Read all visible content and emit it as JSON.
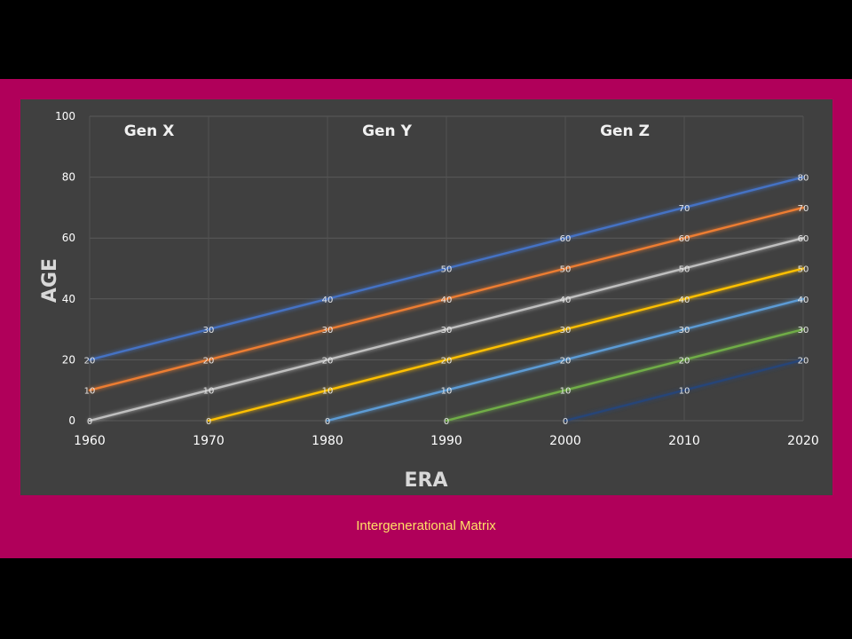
{
  "caption": "Intergenerational Matrix",
  "colors": {
    "background": "#000000",
    "frame": "#b0005a",
    "panel": "#404040",
    "caption": "#ffe066"
  },
  "chart_data": {
    "type": "line",
    "xlabel": "ERA",
    "ylabel": "AGE",
    "xlim": [
      1960,
      2020
    ],
    "ylim": [
      0,
      100
    ],
    "x_ticks": [
      "1960",
      "1970",
      "1980",
      "1990",
      "2000",
      "2010",
      "2020"
    ],
    "y_ticks": [
      "0",
      "20",
      "40",
      "60",
      "80",
      "100"
    ],
    "grid": "vertical and horizontal gridlines",
    "generation_labels": [
      "Gen X",
      "Gen Y",
      "Gen Z"
    ],
    "series": [
      {
        "color": "#4472c4",
        "points": [
          [
            1960,
            20
          ],
          [
            1970,
            30
          ],
          [
            1980,
            40
          ],
          [
            1990,
            50
          ],
          [
            2000,
            60
          ],
          [
            2010,
            70
          ],
          [
            2020,
            80
          ]
        ]
      },
      {
        "color": "#ed7d31",
        "points": [
          [
            1960,
            10
          ],
          [
            1970,
            20
          ],
          [
            1980,
            30
          ],
          [
            1990,
            40
          ],
          [
            2000,
            50
          ],
          [
            2010,
            60
          ],
          [
            2020,
            70
          ]
        ]
      },
      {
        "color": "#bfbfbf",
        "points": [
          [
            1960,
            0
          ],
          [
            1970,
            10
          ],
          [
            1980,
            20
          ],
          [
            1990,
            30
          ],
          [
            2000,
            40
          ],
          [
            2010,
            50
          ],
          [
            2020,
            60
          ]
        ]
      },
      {
        "color": "#ffc000",
        "points": [
          [
            1970,
            0
          ],
          [
            1980,
            10
          ],
          [
            1990,
            20
          ],
          [
            2000,
            30
          ],
          [
            2010,
            40
          ],
          [
            2020,
            50
          ]
        ]
      },
      {
        "color": "#5b9bd5",
        "points": [
          [
            1980,
            0
          ],
          [
            1990,
            10
          ],
          [
            2000,
            20
          ],
          [
            2010,
            30
          ],
          [
            2020,
            40
          ]
        ]
      },
      {
        "color": "#70ad47",
        "points": [
          [
            1990,
            0
          ],
          [
            2000,
            10
          ],
          [
            2010,
            20
          ],
          [
            2020,
            30
          ]
        ]
      },
      {
        "color": "#264478",
        "points": [
          [
            2000,
            0
          ],
          [
            2010,
            10
          ],
          [
            2020,
            20
          ]
        ]
      }
    ],
    "data_labels": [
      "20",
      "30",
      "40",
      "50",
      "60",
      "70",
      "80",
      "10",
      "20",
      "30",
      "40",
      "50",
      "60",
      "70",
      "0",
      "10",
      "20",
      "30",
      "40",
      "50",
      "60",
      "0",
      "10",
      "20",
      "30",
      "40",
      "50",
      "0",
      "10",
      "20",
      "30",
      "40",
      "0",
      "10",
      "20",
      "30",
      "0",
      "10",
      "20"
    ]
  }
}
